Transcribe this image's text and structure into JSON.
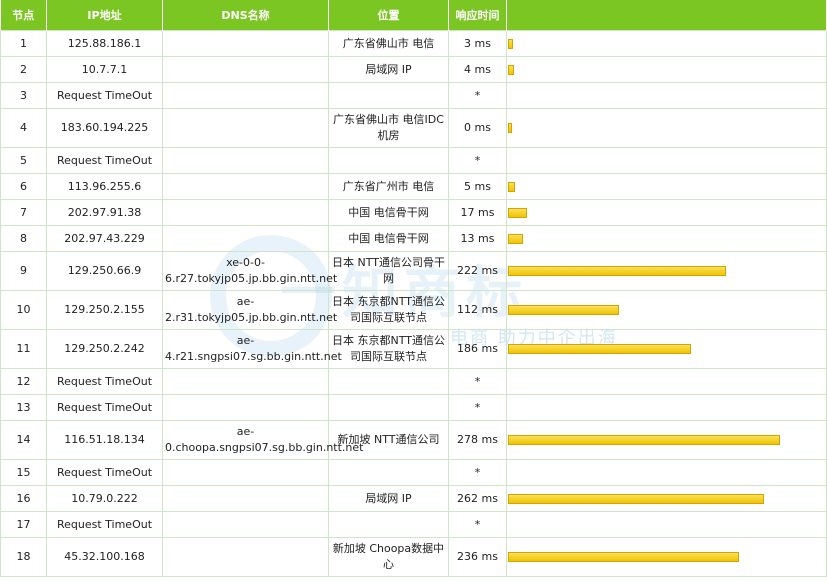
{
  "headers": [
    "节点",
    "IP地址",
    "DNS名称",
    "位置",
    "响应时间",
    ""
  ],
  "rows": [
    {
      "n": "1",
      "ip": "125.88.186.1",
      "dns": "",
      "loc": "广东省佛山市 电信",
      "t": "3 ms",
      "v": 3
    },
    {
      "n": "2",
      "ip": "10.7.7.1",
      "dns": "",
      "loc": "局域网 IP",
      "t": "4 ms",
      "v": 4
    },
    {
      "n": "3",
      "ip": "Request TimeOut",
      "dns": "",
      "loc": "",
      "t": "*",
      "v": 0
    },
    {
      "n": "4",
      "ip": "183.60.194.225",
      "dns": "",
      "loc": "广东省佛山市 电信IDC机房",
      "t": "0 ms",
      "v": 0
    },
    {
      "n": "5",
      "ip": "Request TimeOut",
      "dns": "",
      "loc": "",
      "t": "*",
      "v": 0
    },
    {
      "n": "6",
      "ip": "113.96.255.6",
      "dns": "",
      "loc": "广东省广州市 电信",
      "t": "5 ms",
      "v": 5
    },
    {
      "n": "7",
      "ip": "202.97.91.38",
      "dns": "",
      "loc": "中国 电信骨干网",
      "t": "17 ms",
      "v": 17
    },
    {
      "n": "8",
      "ip": "202.97.43.229",
      "dns": "",
      "loc": "中国 电信骨干网",
      "t": "13 ms",
      "v": 13
    },
    {
      "n": "9",
      "ip": "129.250.66.9",
      "dns": "xe-0-0-6.r27.tokyjp05.jp.bb.gin.ntt.net",
      "loc": "日本 NTT通信公司骨干网",
      "t": "222 ms",
      "v": 222
    },
    {
      "n": "10",
      "ip": "129.250.2.155",
      "dns": "ae-2.r31.tokyjp05.jp.bb.gin.ntt.net",
      "loc": "日本 东京都NTT通信公司国际互联节点",
      "t": "112 ms",
      "v": 112
    },
    {
      "n": "11",
      "ip": "129.250.2.242",
      "dns": "ae-4.r21.sngpsi07.sg.bb.gin.ntt.net",
      "loc": "日本 东京都NTT通信公司国际互联节点",
      "t": "186 ms",
      "v": 186
    },
    {
      "n": "12",
      "ip": "Request TimeOut",
      "dns": "",
      "loc": "",
      "t": "*",
      "v": 0
    },
    {
      "n": "13",
      "ip": "Request TimeOut",
      "dns": "",
      "loc": "",
      "t": "*",
      "v": 0
    },
    {
      "n": "14",
      "ip": "116.51.18.134",
      "dns": "ae-0.choopa.sngpsi07.sg.bb.gin.ntt.net",
      "loc": "新加坡 NTT通信公司",
      "t": "278 ms",
      "v": 278
    },
    {
      "n": "15",
      "ip": "Request TimeOut",
      "dns": "",
      "loc": "",
      "t": "*",
      "v": 0
    },
    {
      "n": "16",
      "ip": "10.79.0.222",
      "dns": "",
      "loc": "局域网 IP",
      "t": "262 ms",
      "v": 262
    },
    {
      "n": "17",
      "ip": "Request TimeOut",
      "dns": "",
      "loc": "",
      "t": "*",
      "v": 0
    },
    {
      "n": "18",
      "ip": "45.32.100.168",
      "dns": "",
      "loc": "新加坡 Choopa数据中心",
      "t": "236 ms",
      "v": 236
    }
  ],
  "watermark": {
    "main": "一知商标",
    "sub": "电商 助力中企出海"
  }
}
